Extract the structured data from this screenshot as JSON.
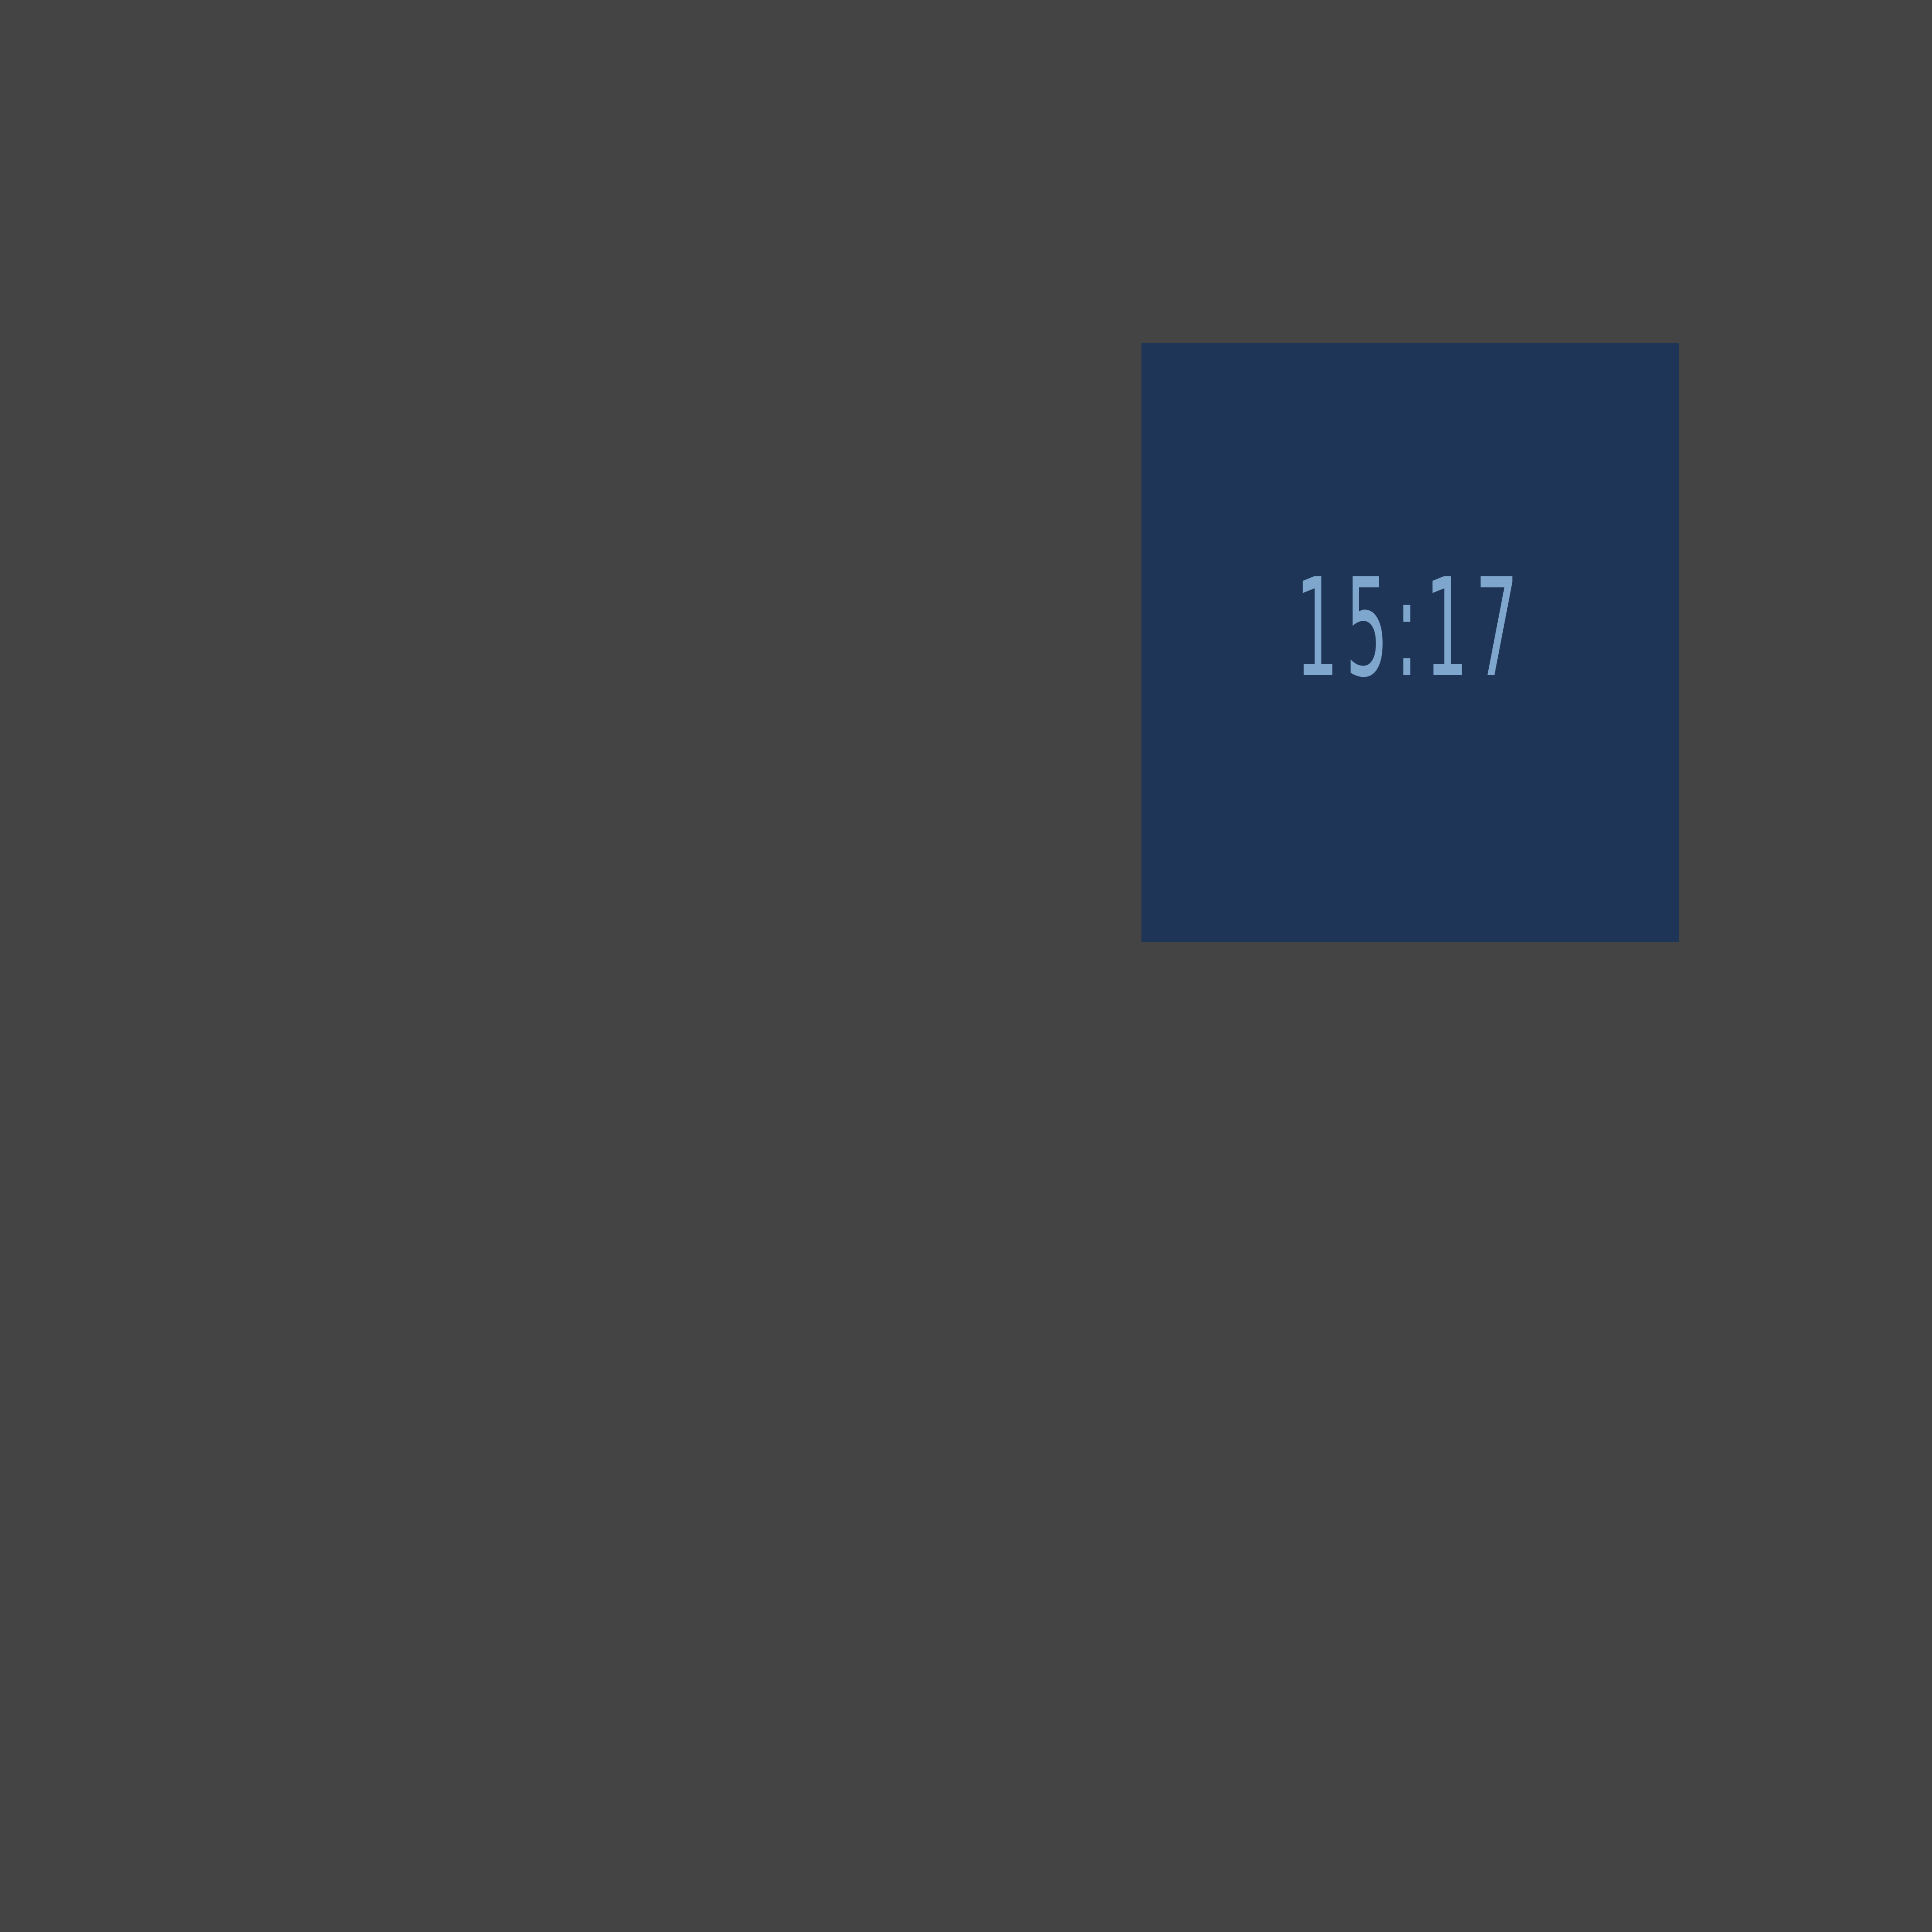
{
  "clock": {
    "time": "15:17"
  },
  "colors": {
    "desktop_background": "#444444",
    "tile_background": "#1e3557",
    "time_text": "#7fa6cc"
  }
}
